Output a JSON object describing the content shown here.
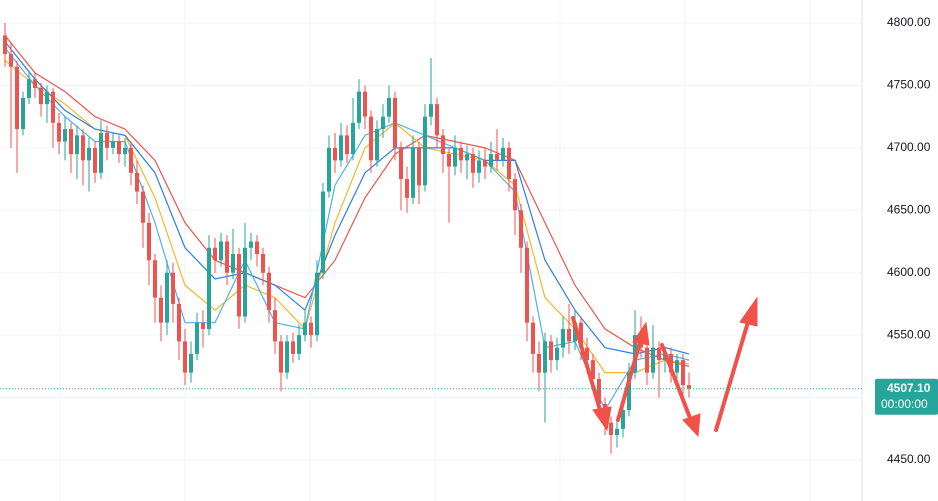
{
  "chart_data": {
    "type": "candlestick",
    "ylim": [
      4417.2,
      4818.4
    ],
    "yticks": [
      {
        "value": 4450,
        "label": "4450.00"
      },
      {
        "value": 4500,
        "label": "4500.00"
      },
      {
        "value": 4550,
        "label": "4550.00"
      },
      {
        "value": 4600,
        "label": "4600.00"
      },
      {
        "value": 4650,
        "label": "4650.00"
      },
      {
        "value": 4700,
        "label": "4700.00"
      },
      {
        "value": 4750,
        "label": "4750.00"
      },
      {
        "value": 4800,
        "label": "4800.00"
      }
    ],
    "grid": true,
    "up_color": "#26a69a",
    "down_color": "#ef5350",
    "open": [
      4790,
      4775,
      4765,
      4715,
      4740,
      4755,
      4748,
      4735,
      4745,
      4720,
      4705,
      4715,
      4695,
      4710,
      4690,
      4700,
      4680,
      4712,
      4700,
      4705,
      4695,
      4700,
      4680,
      4665,
      4640,
      4610,
      4580,
      4560,
      4600,
      4575,
      4545,
      4520,
      4535,
      4560,
      4555,
      4620,
      4610,
      4625,
      4600,
      4615,
      4565,
      4620,
      4625,
      4615,
      4600,
      4570,
      4545,
      4520,
      4545,
      4535,
      4550,
      4560,
      4550,
      4600,
      4665,
      4700,
      4690,
      4710,
      4695,
      4720,
      4745,
      4725,
      4690,
      4715,
      4725,
      4740,
      4700,
      4675,
      4660,
      4700,
      4670,
      4725,
      4735,
      4710,
      4695,
      4685,
      4700,
      4690,
      4695,
      4680,
      4690,
      4685,
      4695,
      4690,
      4700,
      4675,
      4650,
      4620,
      4560,
      4535,
      4520,
      4545,
      4530,
      4540,
      4555,
      4545,
      4560,
      4540,
      4530,
      4515,
      4495,
      4480,
      4470,
      4475,
      4490,
      4520,
      4550,
      4540,
      4520,
      4540,
      4530,
      4535,
      4520,
      4530,
      4510
    ],
    "high": [
      4800,
      4785,
      4770,
      4745,
      4762,
      4760,
      4752,
      4750,
      4748,
      4728,
      4725,
      4720,
      4718,
      4715,
      4708,
      4705,
      4722,
      4718,
      4712,
      4710,
      4708,
      4705,
      4690,
      4670,
      4648,
      4615,
      4590,
      4610,
      4608,
      4580,
      4555,
      4545,
      4568,
      4570,
      4630,
      4628,
      4632,
      4630,
      4635,
      4620,
      4640,
      4632,
      4630,
      4620,
      4605,
      4580,
      4550,
      4550,
      4552,
      4558,
      4570,
      4565,
      4610,
      4672,
      4710,
      4712,
      4720,
      4718,
      4740,
      4755,
      4750,
      4730,
      4722,
      4735,
      4750,
      4745,
      4705,
      4685,
      4710,
      4705,
      4735,
      4772,
      4740,
      4715,
      4700,
      4710,
      4705,
      4702,
      4700,
      4698,
      4700,
      4705,
      4715,
      4708,
      4705,
      4680,
      4655,
      4625,
      4565,
      4545,
      4552,
      4550,
      4548,
      4565,
      4575,
      4570,
      4565,
      4548,
      4535,
      4520,
      4500,
      4485,
      4485,
      4500,
      4528,
      4570,
      4565,
      4545,
      4558,
      4545,
      4540,
      4540,
      4535,
      4535,
      4520
    ],
    "low": [
      4765,
      4700,
      4680,
      4710,
      4735,
      4740,
      4725,
      4720,
      4700,
      4695,
      4690,
      4680,
      4675,
      4670,
      4665,
      4672,
      4675,
      4690,
      4695,
      4688,
      4685,
      4670,
      4655,
      4620,
      4590,
      4560,
      4545,
      4550,
      4560,
      4530,
      4510,
      4512,
      4530,
      4540,
      4550,
      4600,
      4605,
      4590,
      4595,
      4555,
      4560,
      4610,
      4605,
      4590,
      4560,
      4535,
      4505,
      4515,
      4528,
      4530,
      4545,
      4540,
      4545,
      4595,
      4660,
      4680,
      4685,
      4688,
      4690,
      4715,
      4715,
      4680,
      4685,
      4708,
      4720,
      4690,
      4650,
      4648,
      4655,
      4655,
      4665,
      4718,
      4700,
      4680,
      4640,
      4678,
      4680,
      4675,
      4668,
      4672,
      4675,
      4680,
      4682,
      4685,
      4665,
      4630,
      4600,
      4545,
      4520,
      4505,
      4480,
      4520,
      4522,
      4532,
      4535,
      4538,
      4530,
      4520,
      4505,
      4485,
      4470,
      4455,
      4460,
      4468,
      4485,
      4515,
      4532,
      4510,
      4515,
      4500,
      4520,
      4512,
      4515,
      4500,
      4500
    ],
    "close": [
      4775,
      4765,
      4715,
      4740,
      4755,
      4748,
      4735,
      4745,
      4720,
      4705,
      4715,
      4695,
      4710,
      4690,
      4700,
      4680,
      4712,
      4700,
      4705,
      4695,
      4700,
      4680,
      4665,
      4640,
      4610,
      4580,
      4560,
      4600,
      4575,
      4545,
      4520,
      4535,
      4560,
      4555,
      4620,
      4610,
      4625,
      4600,
      4615,
      4565,
      4620,
      4625,
      4615,
      4600,
      4570,
      4545,
      4520,
      4545,
      4535,
      4550,
      4560,
      4550,
      4600,
      4665,
      4700,
      4690,
      4710,
      4695,
      4720,
      4745,
      4725,
      4690,
      4715,
      4725,
      4740,
      4700,
      4675,
      4660,
      4700,
      4670,
      4725,
      4735,
      4710,
      4695,
      4685,
      4700,
      4690,
      4695,
      4680,
      4690,
      4685,
      4695,
      4690,
      4700,
      4675,
      4650,
      4620,
      4560,
      4535,
      4520,
      4545,
      4530,
      4540,
      4555,
      4545,
      4560,
      4540,
      4530,
      4515,
      4495,
      4480,
      4470,
      4475,
      4490,
      4520,
      4550,
      4540,
      4520,
      4540,
      4530,
      4535,
      4520,
      4530,
      4510,
      4507.1
    ],
    "ma_x": [
      0,
      5,
      10,
      15,
      20,
      25,
      30,
      35,
      40,
      45,
      50,
      55,
      60,
      65,
      70,
      75,
      80,
      85,
      90,
      95,
      100,
      105,
      110,
      114
    ],
    "series": [
      {
        "color": "#f0544f",
        "values": [
          4790,
          4760,
          4745,
          4725,
          4715,
          4690,
          4640,
          4610,
          4600,
          4590,
          4580,
          4610,
          4660,
          4695,
          4710,
          4705,
          4700,
          4690,
          4640,
          4590,
          4555,
          4540,
          4530,
          4525
        ]
      },
      {
        "color": "#f5b82e",
        "values": [
          4770,
          4750,
          4735,
          4715,
          4710,
          4660,
          4590,
          4570,
          4590,
          4580,
          4555,
          4640,
          4700,
          4720,
          4700,
          4695,
          4690,
          4670,
          4580,
          4555,
          4520,
          4520,
          4530,
          4527
        ]
      },
      {
        "color": "#2f7fe0",
        "values": [
          4785,
          4755,
          4730,
          4715,
          4710,
          4680,
          4620,
          4595,
          4600,
          4590,
          4570,
          4630,
          4680,
          4700,
          4700,
          4700,
          4690,
          4690,
          4610,
          4570,
          4540,
          4535,
          4540,
          4535
        ]
      },
      {
        "color": "#4fb0ef",
        "values": [
          4780,
          4750,
          4725,
          4705,
          4705,
          4640,
          4560,
          4560,
          4610,
          4560,
          4555,
          4670,
          4710,
          4720,
          4710,
          4700,
          4690,
          4665,
          4540,
          4545,
          4490,
          4530,
          4535,
          4530
        ]
      }
    ],
    "last_price": {
      "value": 4507.1,
      "label": "4507.10"
    },
    "countdown": "00:00:00"
  }
}
